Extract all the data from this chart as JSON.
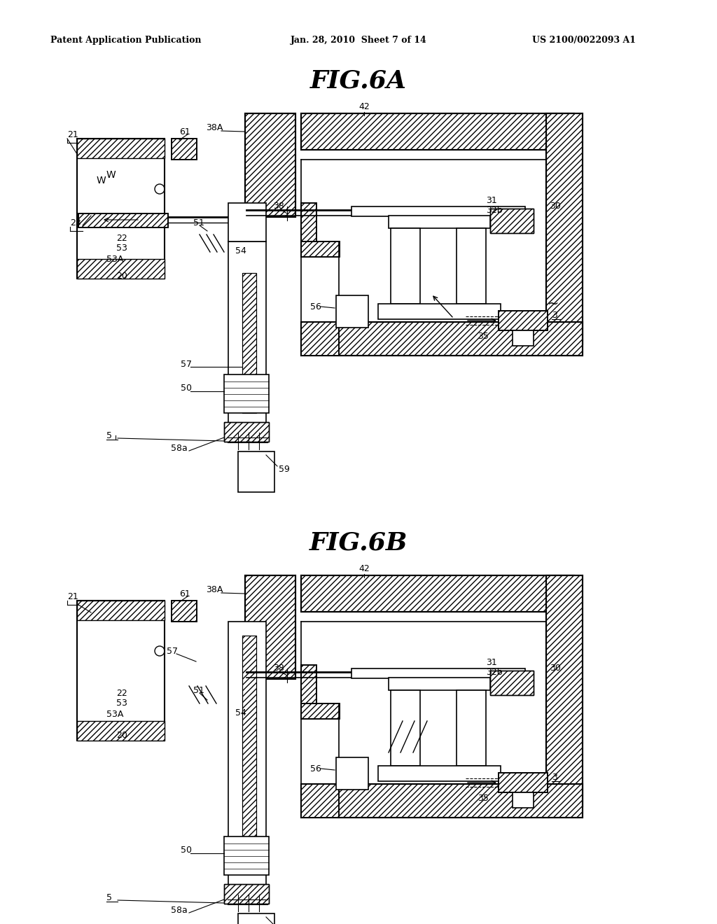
{
  "bg_color": "#ffffff",
  "page_header_left": "Patent Application Publication",
  "page_header_center": "Jan. 28, 2010  Sheet 7 of 14",
  "page_header_right": "US 2100/0022093 A1",
  "title_6A": "FIG.6A",
  "title_6B": "FIG.6B"
}
